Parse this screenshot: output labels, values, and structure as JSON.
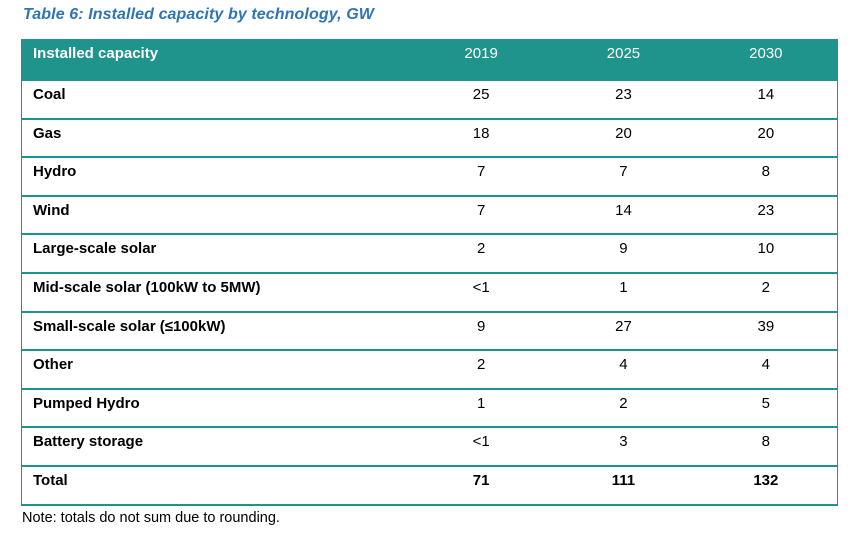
{
  "colors": {
    "header_teal": "#1E948C",
    "caption_blue": "#2E74B5",
    "header_text": "#ffffff",
    "body_text": "#000000"
  },
  "chart_data": {
    "type": "table",
    "title": "Table 6: Installed capacity by technology, GW",
    "row_header": "Installed capacity",
    "columns": [
      "2019",
      "2025",
      "2030"
    ],
    "rows": [
      {
        "label": "Coal",
        "values": [
          "25",
          "23",
          "14"
        ]
      },
      {
        "label": "Gas",
        "values": [
          "18",
          "20",
          "20"
        ]
      },
      {
        "label": "Hydro",
        "values": [
          "7",
          "7",
          "8"
        ]
      },
      {
        "label": "Wind",
        "values": [
          "7",
          "14",
          "23"
        ]
      },
      {
        "label": "Large-scale solar",
        "values": [
          "2",
          "9",
          "10"
        ]
      },
      {
        "label": "Mid-scale solar (100kW to 5MW)",
        "values": [
          "<1",
          "1",
          "2"
        ]
      },
      {
        "label": "Small-scale solar (≤100kW)",
        "values": [
          "9",
          "27",
          "39"
        ]
      },
      {
        "label": "Other",
        "values": [
          "2",
          "4",
          "4"
        ]
      },
      {
        "label": "Pumped Hydro",
        "values": [
          "1",
          "2",
          "5"
        ]
      },
      {
        "label": "Battery storage",
        "values": [
          "<1",
          "3",
          "8"
        ]
      },
      {
        "label": "Total",
        "values": [
          "71",
          "111",
          "132"
        ]
      }
    ],
    "note": "Note: totals do not sum due to rounding.",
    "layout": {
      "grid": "horizontal-separators-only",
      "legend": "none"
    }
  }
}
